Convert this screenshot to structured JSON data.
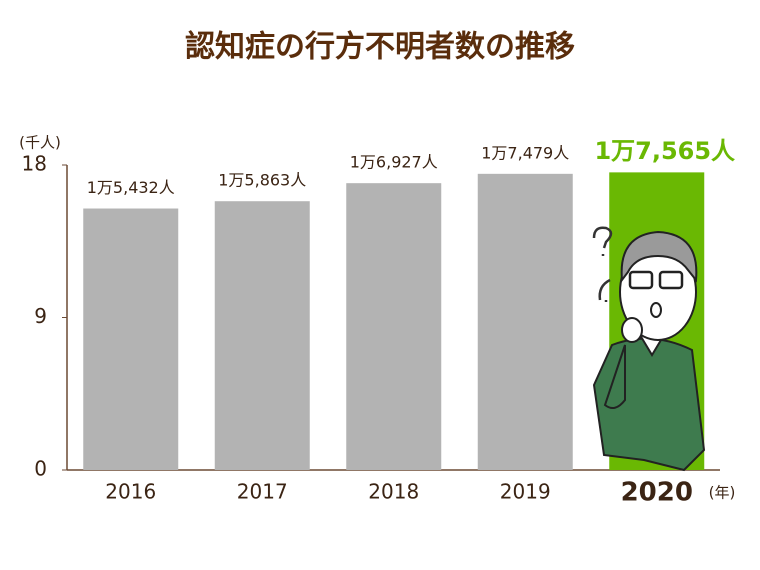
{
  "chart_data": {
    "type": "bar",
    "title": "認知症の行方不明者数の推移",
    "y_unit": "(千人)",
    "x_unit": "(年)",
    "categories": [
      "2016",
      "2017",
      "2018",
      "2019",
      "2020"
    ],
    "values": [
      15.432,
      15.863,
      16.927,
      17.479,
      17.565
    ],
    "value_labels": [
      "1万5,432人",
      "1万5,863人",
      "1万6,927人",
      "1万7,479人",
      "1万7,565人"
    ],
    "color": "#b3b3b3",
    "highlight_color": "#6ab803",
    "highlight_index": 4,
    "ylim": [
      0,
      18
    ],
    "yticks": [
      0,
      9,
      18
    ],
    "grid": false
  }
}
